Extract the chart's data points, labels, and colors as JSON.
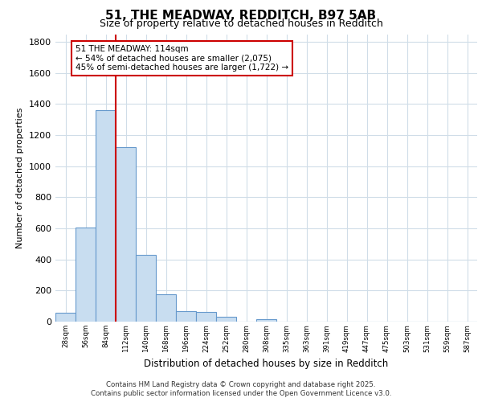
{
  "title_line1": "51, THE MEADWAY, REDDITCH, B97 5AB",
  "title_line2": "Size of property relative to detached houses in Redditch",
  "xlabel": "Distribution of detached houses by size in Redditch",
  "ylabel": "Number of detached properties",
  "categories": [
    "28sqm",
    "56sqm",
    "84sqm",
    "112sqm",
    "140sqm",
    "168sqm",
    "196sqm",
    "224sqm",
    "252sqm",
    "280sqm",
    "308sqm",
    "335sqm",
    "363sqm",
    "391sqm",
    "419sqm",
    "447sqm",
    "475sqm",
    "503sqm",
    "531sqm",
    "559sqm",
    "587sqm"
  ],
  "values": [
    55,
    605,
    1360,
    1125,
    430,
    175,
    65,
    60,
    30,
    0,
    15,
    0,
    0,
    0,
    0,
    0,
    0,
    0,
    0,
    0,
    0
  ],
  "bar_color": "#c8ddf0",
  "bar_edge_color": "#6699cc",
  "vline_color": "#cc0000",
  "annotation_line1": "51 THE MEADWAY: 114sqm",
  "annotation_line2": "← 54% of detached houses are smaller (2,075)",
  "annotation_line3": "45% of semi-detached houses are larger (1,722) →",
  "annotation_box_color": "#ffffff",
  "annotation_box_edge_color": "#cc0000",
  "ylim": [
    0,
    1850
  ],
  "yticks": [
    0,
    200,
    400,
    600,
    800,
    1000,
    1200,
    1400,
    1600,
    1800
  ],
  "fig_bg_color": "#ffffff",
  "plot_bg_color": "#ffffff",
  "grid_color": "#d0dde8",
  "footnote": "Contains HM Land Registry data © Crown copyright and database right 2025.\nContains public sector information licensed under the Open Government Licence v3.0."
}
